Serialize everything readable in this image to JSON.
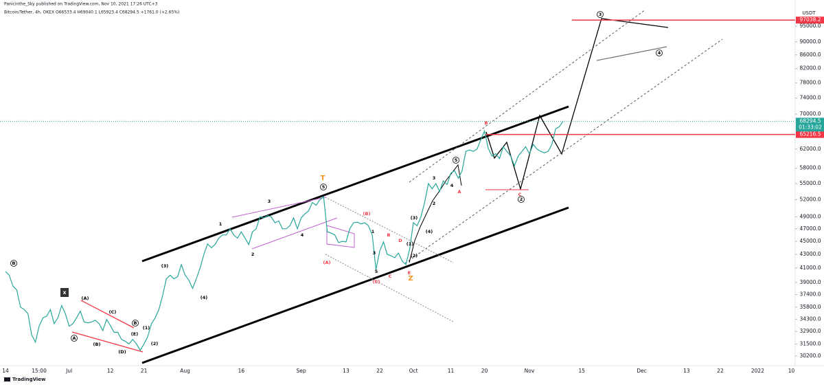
{
  "chart_data": {
    "type": "line",
    "publisher_line": "Panicinthe_Sky published on TradingView.com, Nov 10, 2021 17:26 UTC+3",
    "symbol_line": "Bitcoin/Tether, 4h, OKEX O66533.4 H69040.1 L65923.4 C68294.5 +1761.0 (+2.65%)",
    "currency": "USDT",
    "footer": "TradingView",
    "log_scale": true,
    "grid": false,
    "categories": [
      "14",
      null,
      null,
      null,
      null,
      null,
      null,
      null,
      null,
      "15:00",
      null,
      null,
      null,
      null,
      null,
      null,
      null,
      "Jul",
      null,
      null,
      null,
      null,
      null,
      null,
      null,
      null,
      null,
      null,
      "12",
      null,
      null,
      null,
      null,
      null,
      null,
      null,
      null,
      "21",
      null,
      null,
      null,
      null,
      null,
      null,
      null,
      null,
      null,
      null,
      "Aug",
      null,
      null,
      null,
      null,
      null,
      null,
      null,
      null,
      null,
      null,
      null,
      null,
      null,
      null,
      "16",
      null,
      null,
      null,
      null,
      null,
      null,
      null,
      null,
      null,
      null,
      null,
      null,
      null,
      null,
      null,
      "Sep",
      null,
      null,
      null,
      null,
      null,
      null,
      null,
      null,
      null,
      null,
      null,
      "13",
      null,
      null,
      null,
      null,
      null,
      null,
      null,
      null,
      "22",
      null,
      null,
      null,
      null,
      null,
      null,
      null,
      null,
      "Oct",
      null,
      null,
      null,
      null,
      null,
      null,
      null,
      null,
      null,
      "11",
      null,
      null,
      null,
      null,
      null,
      null,
      null,
      null,
      "20",
      null,
      null,
      null,
      null,
      null,
      null,
      null,
      null,
      null,
      null,
      null,
      "Nov",
      null,
      null,
      null,
      null,
      null,
      null,
      null,
      null,
      null,
      null,
      null,
      null,
      null,
      "15",
      null,
      null,
      null,
      null,
      null,
      null,
      null,
      null,
      null,
      null,
      null,
      null,
      null,
      null,
      null,
      "Dec",
      null,
      null,
      null,
      null,
      null,
      null,
      null,
      null,
      null,
      null,
      null,
      "13",
      null,
      null,
      null,
      null,
      null,
      null,
      null,
      null,
      "22",
      null,
      null,
      null,
      null,
      null,
      null,
      null,
      null,
      null,
      "2022",
      null,
      null,
      null,
      null,
      null,
      null,
      null,
      null,
      "10"
    ],
    "series": [
      {
        "name": "BTCUSDT",
        "color": "#26a69a",
        "values": [
          40500,
          40000,
          38500,
          38000,
          35800,
          35500,
          35000,
          32500,
          31700,
          33500,
          34500,
          34700,
          35500,
          33800,
          34500,
          36000,
          35000,
          33500,
          33800,
          34500,
          35300,
          34000,
          33900,
          34000,
          34200,
          33800,
          33000,
          34300,
          33600,
          32800,
          32800,
          32000,
          31800,
          31500,
          32000,
          31500,
          30800,
          31500,
          32300,
          33800,
          34500,
          35500,
          37300,
          39500,
          40000,
          39500,
          39800,
          41500,
          40000,
          39300,
          38200,
          39500,
          41000,
          43000,
          44600,
          44000,
          44500,
          45500,
          46000,
          46000,
          47000,
          46000,
          45500,
          46500,
          45500,
          44500,
          46500,
          47000,
          49000,
          48800,
          49200,
          49000,
          48000,
          48300,
          47000,
          47000,
          47500,
          48800,
          47000,
          48800,
          49500,
          50000,
          51500,
          51000,
          52000,
          52500,
          46500,
          46300,
          46000,
          44800,
          45000,
          44900,
          47000,
          48000,
          48100,
          47800,
          48000,
          47500,
          46000,
          40800,
          43500,
          44900,
          43000,
          42800,
          42500,
          43200,
          42000,
          41500,
          43800,
          48000,
          47500,
          49000,
          51500,
          55000,
          54000,
          55000,
          53500,
          55500,
          54800,
          57000,
          57500,
          56000,
          57500,
          61500,
          61800,
          61500,
          62000,
          64000,
          66000,
          62200,
          60500,
          61000,
          60000,
          62500,
          61500,
          60500,
          58500,
          60500,
          61500,
          62500,
          61000,
          63000,
          62000,
          61500,
          61200,
          61500,
          63000,
          66500,
          67000,
          68294.5,
          null,
          null,
          null,
          null,
          null,
          null,
          null,
          null,
          null,
          null,
          null,
          null,
          null,
          null,
          null,
          null,
          null,
          null,
          null,
          null,
          null,
          null,
          null,
          null,
          null,
          null,
          null,
          null,
          null,
          null,
          null,
          null,
          null,
          null,
          null,
          null,
          null,
          null,
          null,
          null,
          null,
          null,
          null,
          null,
          null,
          null,
          null,
          null,
          null,
          null,
          null,
          null,
          null,
          null,
          null,
          null,
          null,
          null,
          null,
          null,
          null
        ]
      }
    ],
    "ylim": [
      29000,
      101600
    ],
    "yticks": [
      {
        "value": 95000,
        "label": "95000.0"
      },
      {
        "value": 90000,
        "label": "90000.0"
      },
      {
        "value": 86000,
        "label": "86000.0"
      },
      {
        "value": 82000,
        "label": "82000.0"
      },
      {
        "value": 78000,
        "label": "78000.0"
      },
      {
        "value": 74000,
        "label": "74000.0"
      },
      {
        "value": 70000,
        "label": "70000.0"
      },
      {
        "value": 62000,
        "label": "62000.0"
      },
      {
        "value": 58000,
        "label": "58000.0"
      },
      {
        "value": 55000,
        "label": "55000.0"
      },
      {
        "value": 52000,
        "label": "52000.0"
      },
      {
        "value": 49000,
        "label": "49000.0"
      },
      {
        "value": 47000,
        "label": "47000.0"
      },
      {
        "value": 45000,
        "label": "45000.0"
      },
      {
        "value": 43000,
        "label": "43000.0"
      },
      {
        "value": 41000,
        "label": "41000.0"
      },
      {
        "value": 39000,
        "label": "39000.0"
      },
      {
        "value": 37400,
        "label": "37400.0"
      },
      {
        "value": 35800,
        "label": "35800.0"
      },
      {
        "value": 34300,
        "label": "34300.0"
      },
      {
        "value": 32900,
        "label": "32900.0"
      },
      {
        "value": 31500,
        "label": "31500.0"
      },
      {
        "value": 30200,
        "label": "30200.0"
      }
    ],
    "levels": [
      97038.2,
      65216.5
    ],
    "level_color": "#f23645",
    "last_price": 68294.5,
    "countdown": "01:33:02",
    "annotations": [
      "B",
      "A",
      "B",
      "(A)",
      "(B)",
      "(C)",
      "(D)",
      "(E)",
      "(1)",
      "(2)",
      "(3)",
      "(4)",
      "1",
      "2",
      "3",
      "4",
      "5",
      "T",
      "(A)",
      "(B)",
      "(C)",
      "1",
      "3",
      "5",
      "B",
      "D",
      "C",
      "E",
      "Z",
      "(1)",
      "(2)",
      "(3)",
      "(4)",
      "3",
      "2",
      "5",
      "4",
      "A",
      "B",
      "C",
      "2",
      "3",
      "4",
      "X"
    ]
  }
}
